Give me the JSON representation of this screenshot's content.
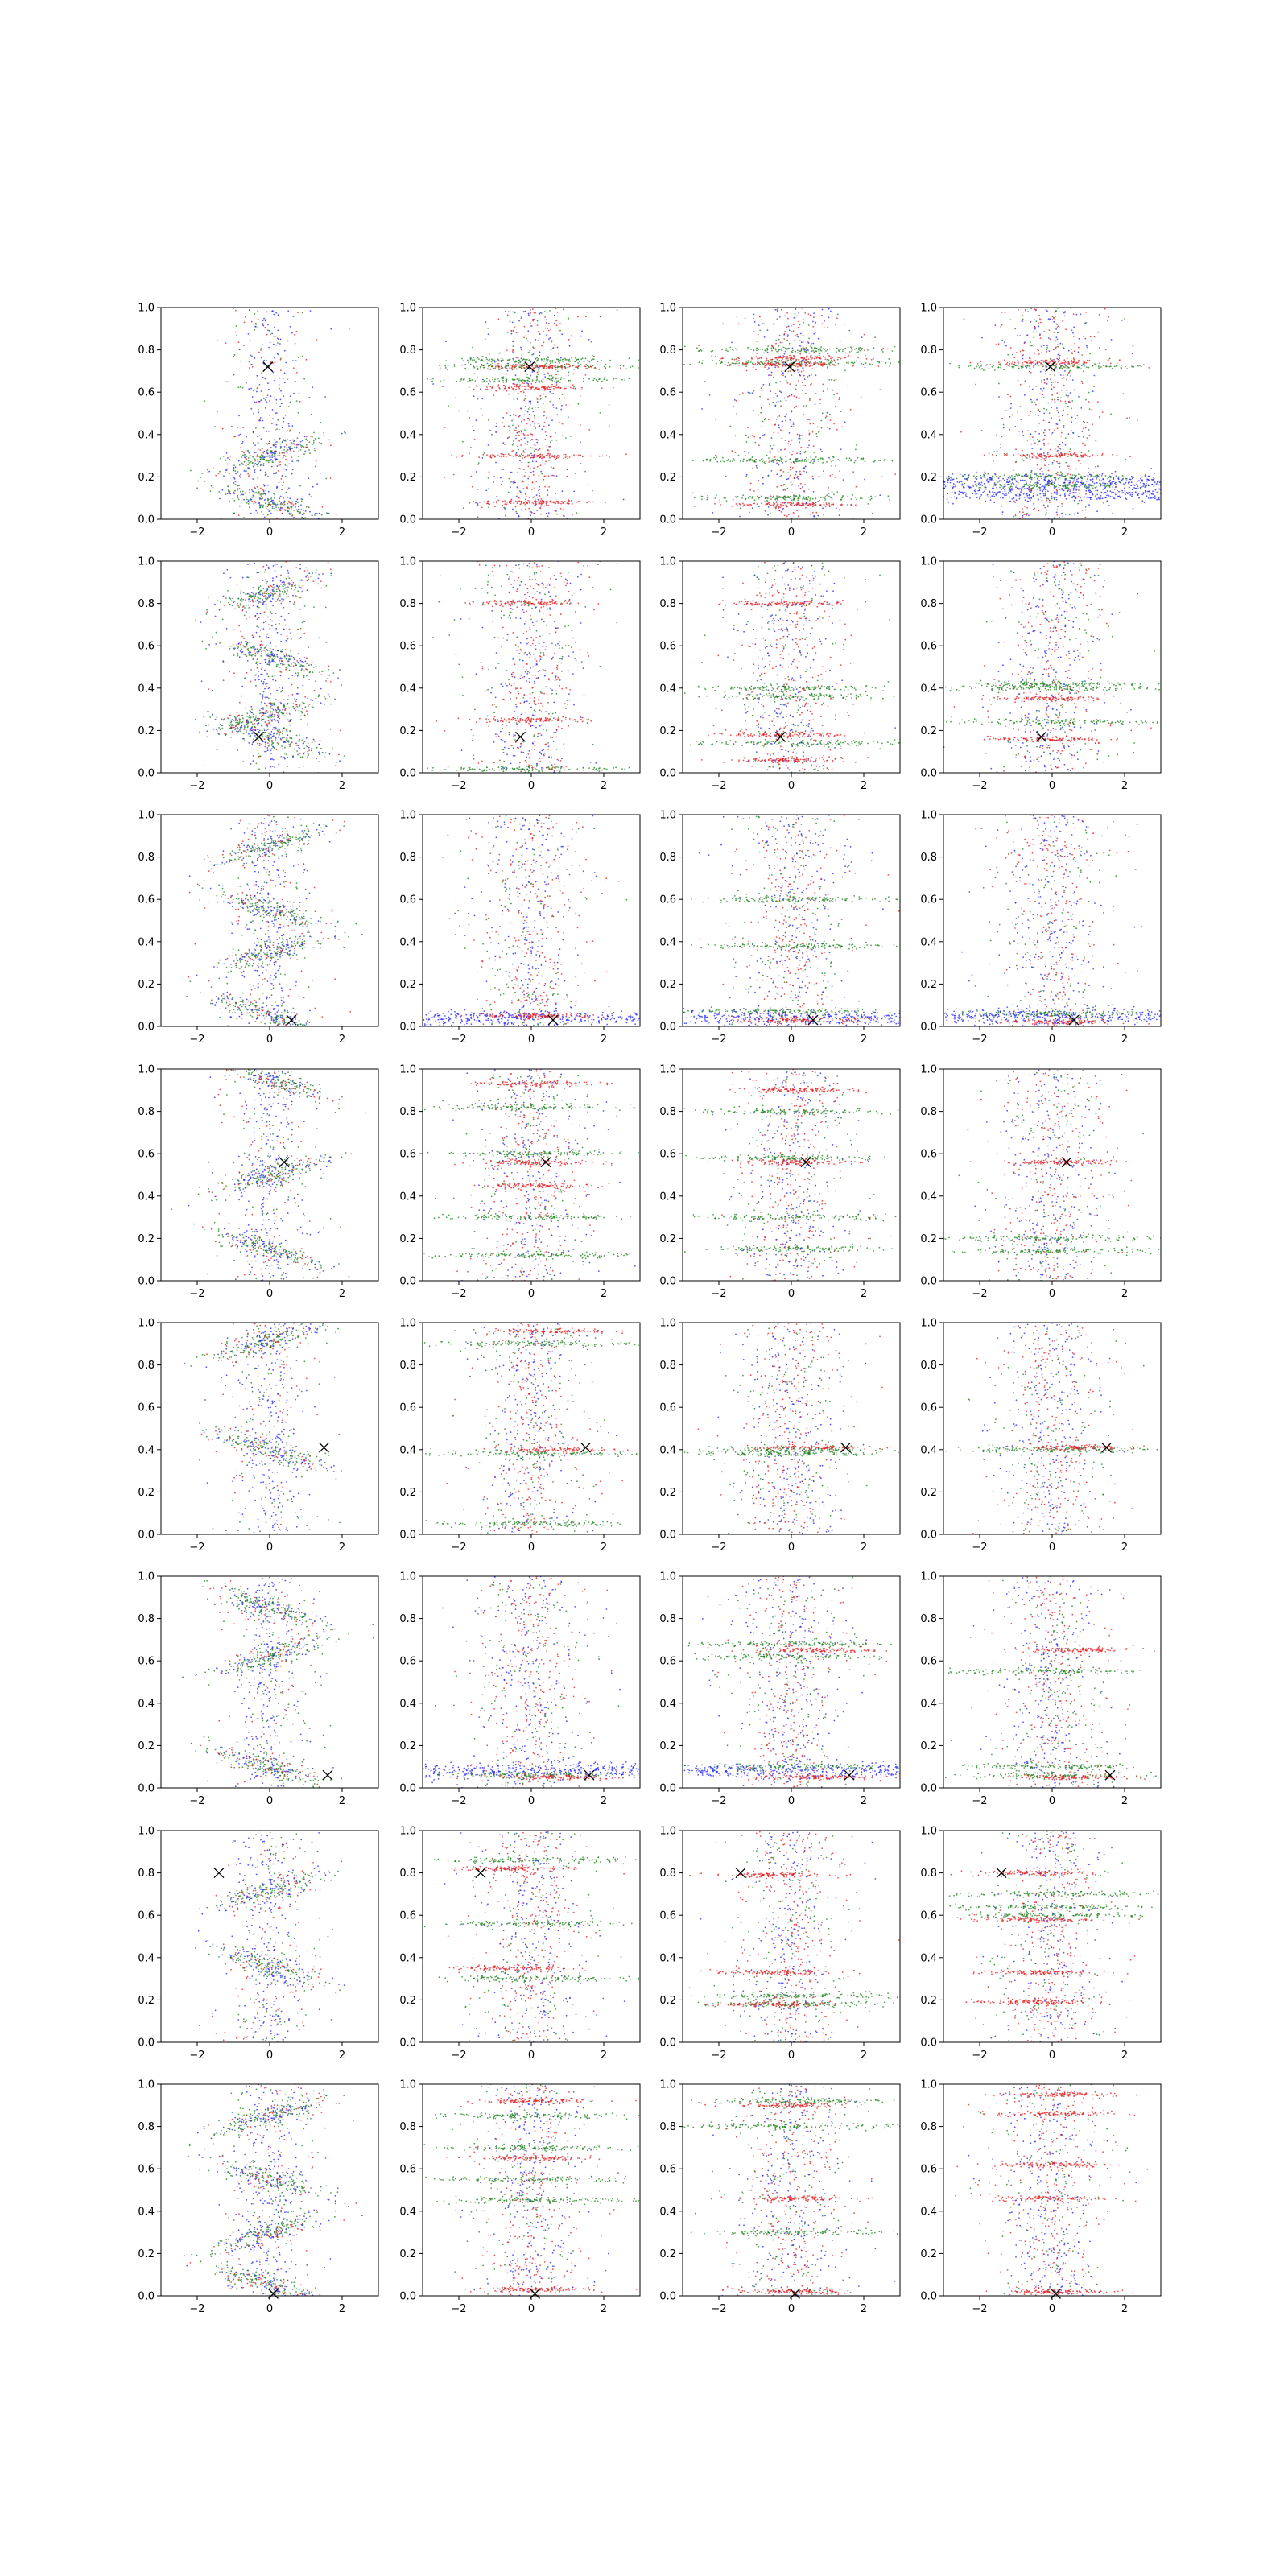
{
  "chart_data": {
    "type": "scatter",
    "grid_rows": 8,
    "grid_cols": 4,
    "xlim": [
      -3,
      3
    ],
    "ylim": [
      0,
      1
    ],
    "xticks": [
      -2,
      0,
      2
    ],
    "yticks": [
      0.0,
      0.2,
      0.4,
      0.6,
      0.8,
      1.0
    ],
    "xtick_labels": [
      "−2",
      "0",
      "2"
    ],
    "ytick_labels": [
      "0.0",
      "0.2",
      "0.4",
      "0.6",
      "0.8",
      "1.0"
    ],
    "grid": false,
    "legend": "none",
    "colors": {
      "blue": "#1f1fff",
      "green": "#1a7f1a",
      "red": "#e41a1c",
      "marker": "#000000"
    },
    "rows": [
      {
        "marker": {
          "x": -0.05,
          "y": 0.72
        },
        "wave_bands": [
          0.08,
          0.3
        ],
        "panels": [
          {
            "red": [
              0.62,
              0.72,
              0.3,
              0.08
            ],
            "green": [
              0.75,
              0.72,
              0.66
            ]
          },
          {
            "red": [
              0.73,
              0.76,
              0.07
            ],
            "green": [
              0.8,
              0.74,
              0.28,
              0.1
            ]
          },
          {
            "red": [
              0.74,
              0.3
            ],
            "green": [
              0.72,
              0.2,
              0.16
            ],
            "blue": [
              0.18,
              0.12
            ]
          }
        ]
      },
      {
        "marker": {
          "x": -0.3,
          "y": 0.17
        },
        "wave_bands": [
          0.17,
          0.28,
          0.55,
          0.85
        ],
        "panels": [
          {
            "red": [
              0.8,
              0.25
            ],
            "green": [
              0.02
            ]
          },
          {
            "red": [
              0.8,
              0.18,
              0.06
            ],
            "green": [
              0.4,
              0.36,
              0.14
            ]
          },
          {
            "red": [
              0.35,
              0.16
            ],
            "green": [
              0.42,
              0.4,
              0.24
            ]
          }
        ]
      },
      {
        "marker": {
          "x": 0.6,
          "y": 0.03
        },
        "wave_bands": [
          0.05,
          0.35,
          0.55,
          0.85
        ],
        "panels": [
          {
            "red": [
              0.05
            ],
            "blue": [
              0.04
            ]
          },
          {
            "red": [
              0.03
            ],
            "green": [
              0.6,
              0.38,
              0.07
            ],
            "blue": [
              0.04
            ]
          },
          {
            "red": [
              0.02
            ],
            "green": [
              0.06
            ],
            "blue": [
              0.05
            ]
          }
        ]
      },
      {
        "marker": {
          "x": 0.4,
          "y": 0.56
        },
        "wave_bands": [
          0.15,
          0.5,
          0.95
        ],
        "panels": [
          {
            "red": [
              0.93,
              0.56,
              0.45
            ],
            "green": [
              0.82,
              0.6,
              0.3,
              0.12
            ]
          },
          {
            "red": [
              0.9,
              0.56
            ],
            "green": [
              0.8,
              0.58,
              0.3,
              0.15
            ]
          },
          {
            "red": [
              0.56
            ],
            "green": [
              0.2,
              0.14
            ]
          }
        ]
      },
      {
        "marker": {
          "x": 1.5,
          "y": 0.41
        },
        "wave_bands": [
          0.4,
          0.92
        ],
        "panels": [
          {
            "red": [
              0.96,
              0.4
            ],
            "green": [
              0.9,
              0.38,
              0.05
            ]
          },
          {
            "red": [
              0.41
            ],
            "green": [
              0.4,
              0.38
            ]
          },
          {
            "red": [
              0.41
            ],
            "green": [
              0.4
            ]
          }
        ]
      },
      {
        "marker": {
          "x": 1.6,
          "y": 0.06
        },
        "wave_bands": [
          0.1,
          0.62,
          0.85
        ],
        "panels": [
          {
            "red": [
              0.05
            ],
            "green": [
              0.06
            ],
            "blue": [
              0.08
            ]
          },
          {
            "red": [
              0.65,
              0.05
            ],
            "green": [
              0.68,
              0.62,
              0.1
            ],
            "blue": [
              0.08
            ]
          },
          {
            "red": [
              0.65,
              0.05
            ],
            "green": [
              0.55,
              0.1,
              0.06
            ]
          }
        ]
      },
      {
        "marker": {
          "x": -1.4,
          "y": 0.8
        },
        "wave_bands": [
          0.36,
          0.72
        ],
        "panels": [
          {
            "red": [
              0.82,
              0.35
            ],
            "green": [
              0.86,
              0.56,
              0.3
            ]
          },
          {
            "red": [
              0.79,
              0.33,
              0.18
            ],
            "green": [
              0.22,
              0.18
            ]
          },
          {
            "red": [
              0.8,
              0.58,
              0.33,
              0.19
            ],
            "green": [
              0.7,
              0.64,
              0.6
            ]
          }
        ]
      },
      {
        "marker": {
          "x": 0.1,
          "y": 0.01
        },
        "wave_bands": [
          0.05,
          0.3,
          0.55,
          0.85
        ],
        "panels": [
          {
            "red": [
              0.92,
              0.65,
              0.03
            ],
            "green": [
              0.45,
              0.85,
              0.7,
              0.55
            ]
          },
          {
            "red": [
              0.9,
              0.46,
              0.02
            ],
            "green": [
              0.92,
              0.8,
              0.3
            ]
          },
          {
            "red": [
              0.95,
              0.86,
              0.62,
              0.46,
              0.02
            ]
          }
        ]
      }
    ]
  }
}
